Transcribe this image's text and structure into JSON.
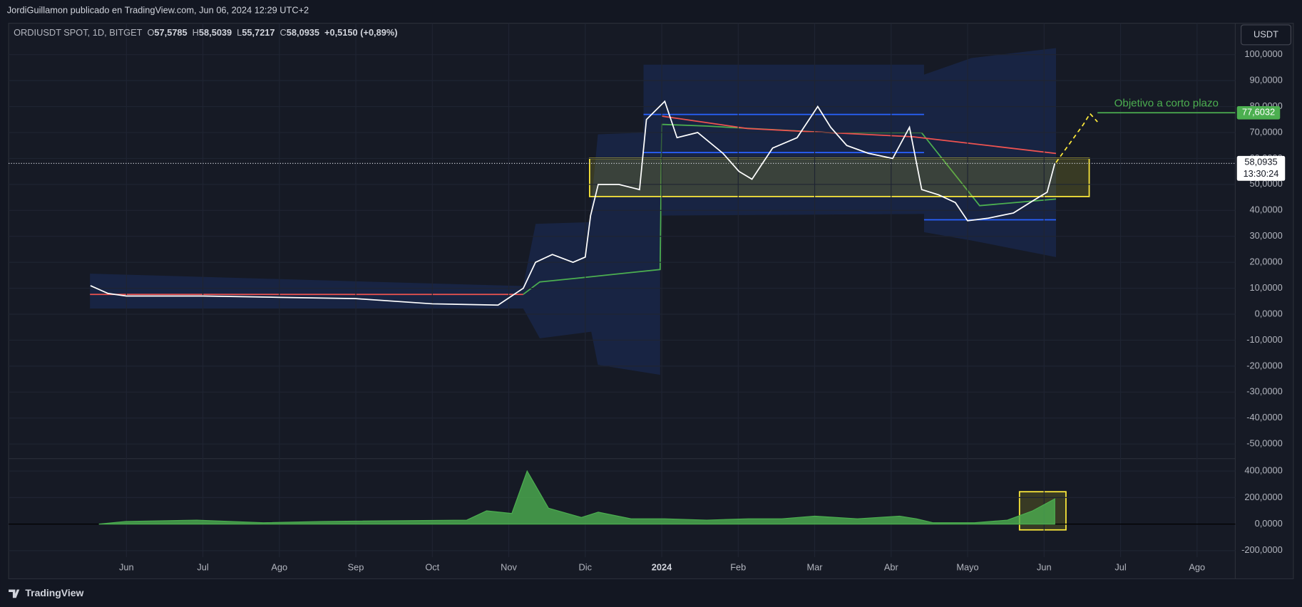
{
  "header": {
    "publisher": "JordiGuillamon publicado en TradingView.com, Jun 06, 2024 12:29 UTC+2",
    "symbol": "ORDIUSDT SPOT, 1D, BITGET",
    "ohlc": [
      {
        "label": "O",
        "value": "57,5785"
      },
      {
        "label": "H",
        "value": "58,5039"
      },
      {
        "label": "L",
        "value": "55,7217"
      },
      {
        "label": "C",
        "value": "58,0935"
      }
    ],
    "change": "+0,5150 (+0,89%)",
    "currency": "USDT"
  },
  "footer": "TradingView",
  "chart_data": [
    {
      "type": "line",
      "color": "#ffffff",
      "x": [
        -0.47,
        -0.24,
        0,
        1,
        2,
        3,
        4,
        4.86,
        5.19,
        5.35,
        5.57,
        5.84,
        6,
        6.07,
        6.17,
        6.44,
        6.71,
        6.8,
        7.04,
        7.2,
        7.47,
        7.8,
        8.01,
        8.18,
        8.45,
        8.77,
        9.04,
        9.21,
        9.42,
        9.7,
        10.02,
        10.24,
        10.4,
        10.62,
        10.84,
        11,
        11.27,
        11.6,
        11.87,
        12.04,
        12.14
      ],
      "values": [
        11,
        8,
        7,
        7,
        6.5,
        6,
        4,
        3.5,
        10,
        20,
        23,
        20,
        22,
        38,
        50,
        50,
        48,
        75,
        82,
        68,
        70,
        62,
        55,
        52,
        64,
        68,
        80,
        72,
        65,
        62,
        60,
        72,
        48,
        46,
        43,
        36,
        37,
        39,
        44,
        47,
        58.0935
      ],
      "xlim": [
        -1.54,
        14.5
      ],
      "xticks": [
        {
          "value": 0,
          "label": "Jun"
        },
        {
          "value": 1,
          "label": "Jul"
        },
        {
          "value": 2,
          "label": "Ago"
        },
        {
          "value": 3,
          "label": "Sep"
        },
        {
          "value": 4,
          "label": "Oct"
        },
        {
          "value": 5,
          "label": "Nov"
        },
        {
          "value": 6,
          "label": "Dic"
        },
        {
          "value": 7,
          "label": "2024"
        },
        {
          "value": 8,
          "label": "Feb"
        },
        {
          "value": 9,
          "label": "Mar"
        },
        {
          "value": 10,
          "label": "Abr"
        },
        {
          "value": 11,
          "label": "Mayo"
        },
        {
          "value": 12,
          "label": "Jun"
        },
        {
          "value": 13,
          "label": "Jul"
        },
        {
          "value": 14,
          "label": "Ago"
        }
      ],
      "ylim": [
        -55.3,
        112.1
      ],
      "yticks": [
        {
          "value": 100,
          "label": "100,0000"
        },
        {
          "value": 90,
          "label": "90,0000"
        },
        {
          "value": 80,
          "label": "80,0000"
        },
        {
          "value": 70,
          "label": "70,0000"
        },
        {
          "value": 60,
          "label": "60,0000"
        },
        {
          "value": 50,
          "label": "50,0000"
        },
        {
          "value": 40,
          "label": "40,0000"
        },
        {
          "value": 30,
          "label": "30,0000"
        },
        {
          "value": 20,
          "label": "20,0000"
        },
        {
          "value": 10,
          "label": "10,0000"
        },
        {
          "value": 0,
          "label": "0,0000"
        },
        {
          "value": -10,
          "label": "-10,0000"
        },
        {
          "value": -20,
          "label": "-20,0000"
        },
        {
          "value": -30,
          "label": "-30,0000"
        },
        {
          "value": -40,
          "label": "-40,0000"
        },
        {
          "value": -50,
          "label": "-50,0000"
        }
      ],
      "grid": true,
      "annotation": "Objetivo a corto plazo",
      "target": {
        "value": 77.6032,
        "label": "77,6032"
      },
      "last_price": {
        "value": 58.0935,
        "label": "58,0935"
      },
      "countdown": "13:30:24"
    },
    {
      "type": "area",
      "color": "#4caf50",
      "x": [
        -0.36,
        -0.01,
        0.92,
        1.79,
        2.56,
        4.45,
        4.71,
        5.04,
        5.24,
        5.52,
        5.95,
        6.17,
        6.6,
        7.04,
        7.59,
        8.13,
        8.57,
        9.0,
        9.56,
        10.11,
        10.33,
        10.55,
        11.09,
        11.52,
        11.85,
        12.14
      ],
      "values": [
        0,
        20,
        30,
        10,
        20,
        30,
        100,
        80,
        400,
        120,
        50,
        90,
        40,
        40,
        30,
        40,
        40,
        60,
        40,
        60,
        40,
        10,
        10,
        30,
        100,
        190
      ],
      "xlim": [
        -1.54,
        14.5
      ],
      "ylim": [
        -250,
        494
      ],
      "yticks": [
        {
          "value": 400,
          "label": "400,0000"
        },
        {
          "value": 200,
          "label": "200,0000"
        },
        {
          "value": 0,
          "label": "0,0000"
        },
        {
          "value": -200,
          "label": "-200,0000"
        }
      ],
      "grid": true
    }
  ]
}
